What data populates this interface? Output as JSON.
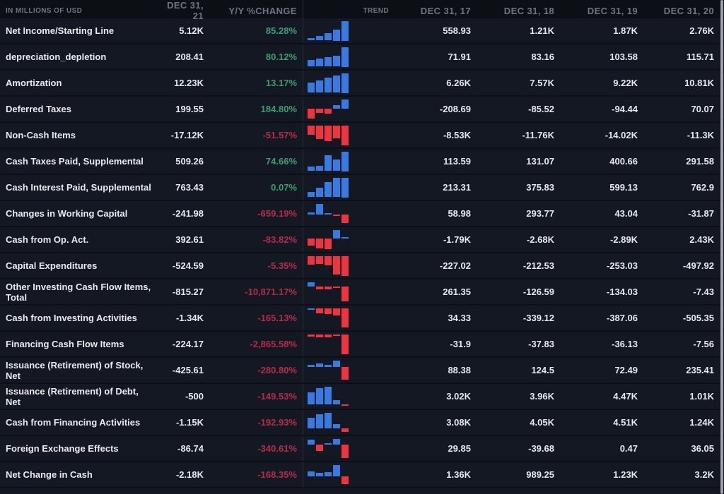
{
  "table": {
    "unit_label": "IN MILLIONS OF USD",
    "columns": {
      "current": "DEC 31, 21",
      "yoy": "Y/Y %CHANGE",
      "trend": "TREND",
      "y2017": "DEC 31, 17",
      "y2018": "DEC 31, 18",
      "y2019": "DEC 31, 19",
      "y2020": "DEC 31, 20"
    },
    "colors": {
      "positive_text": "#3c9e6e",
      "negative_text": "#b42d46",
      "bar_positive": "#377be2",
      "bar_negative": "#ef3440"
    },
    "rows": [
      {
        "label": "Net Income/Starting Line",
        "current": "5.12K",
        "yoy": "85.28%",
        "yoy_dir": "up",
        "y2017": "558.93",
        "y2018": "1.21K",
        "y2019": "1.87K",
        "y2020": "2.76K",
        "trend_values": [
          558.93,
          1210,
          1870,
          2760,
          5120
        ]
      },
      {
        "label": "depreciation_depletion",
        "current": "208.41",
        "yoy": "80.12%",
        "yoy_dir": "up",
        "y2017": "71.91",
        "y2018": "83.16",
        "y2019": "103.58",
        "y2020": "115.71",
        "trend_values": [
          71.91,
          83.16,
          103.58,
          115.71,
          208.41
        ]
      },
      {
        "label": "Amortization",
        "current": "12.23K",
        "yoy": "13.17%",
        "yoy_dir": "up",
        "y2017": "6.26K",
        "y2018": "7.57K",
        "y2019": "9.22K",
        "y2020": "10.81K",
        "trend_values": [
          6260,
          7570,
          9220,
          10810,
          12230
        ]
      },
      {
        "label": "Deferred Taxes",
        "current": "199.55",
        "yoy": "184.80%",
        "yoy_dir": "up",
        "y2017": "-208.69",
        "y2018": "-85.52",
        "y2019": "-94.44",
        "y2020": "70.07",
        "trend_values": [
          -208.69,
          -85.52,
          -94.44,
          70.07,
          199.55
        ]
      },
      {
        "label": "Non-Cash Items",
        "current": "-17.12K",
        "yoy": "-51.57%",
        "yoy_dir": "down",
        "y2017": "-8.53K",
        "y2018": "-11.76K",
        "y2019": "-14.02K",
        "y2020": "-11.3K",
        "trend_values": [
          -8530,
          -11760,
          -14020,
          -11300,
          -17120
        ]
      },
      {
        "label": "Cash Taxes Paid, Supplemental",
        "current": "509.26",
        "yoy": "74.66%",
        "yoy_dir": "up",
        "y2017": "113.59",
        "y2018": "131.07",
        "y2019": "400.66",
        "y2020": "291.58",
        "trend_values": [
          113.59,
          131.07,
          400.66,
          291.58,
          509.26
        ]
      },
      {
        "label": "Cash Interest Paid, Supplemental",
        "current": "763.43",
        "yoy": "0.07%",
        "yoy_dir": "up",
        "y2017": "213.31",
        "y2018": "375.83",
        "y2019": "599.13",
        "y2020": "762.9",
        "trend_values": [
          213.31,
          375.83,
          599.13,
          762.9,
          763.43
        ]
      },
      {
        "label": "Changes in Working Capital",
        "current": "-241.98",
        "yoy": "-659.19%",
        "yoy_dir": "down",
        "y2017": "58.98",
        "y2018": "293.77",
        "y2019": "43.04",
        "y2020": "-31.87",
        "trend_values": [
          58.98,
          293.77,
          43.04,
          -31.87,
          -241.98
        ]
      },
      {
        "label": "Cash from Op. Act.",
        "current": "392.61",
        "yoy": "-83.82%",
        "yoy_dir": "down",
        "y2017": "-1.79K",
        "y2018": "-2.68K",
        "y2019": "-2.89K",
        "y2020": "2.43K",
        "trend_values": [
          -1790,
          -2680,
          -2890,
          2430,
          392.61
        ]
      },
      {
        "label": "Capital Expenditures",
        "current": "-524.59",
        "yoy": "-5.35%",
        "yoy_dir": "down",
        "y2017": "-227.02",
        "y2018": "-212.53",
        "y2019": "-253.03",
        "y2020": "-497.92",
        "trend_values": [
          -227.02,
          -212.53,
          -253.03,
          -497.92,
          -524.59
        ]
      },
      {
        "label": "Other Investing Cash Flow Items, Total",
        "current": "-815.27",
        "yoy": "-10,871.17%",
        "yoy_dir": "down",
        "y2017": "261.35",
        "y2018": "-126.59",
        "y2019": "-134.03",
        "y2020": "-7.43",
        "trend_values": [
          261.35,
          -126.59,
          -134.03,
          -7.43,
          -815.27
        ]
      },
      {
        "label": "Cash from Investing Activities",
        "current": "-1.34K",
        "yoy": "-165.13%",
        "yoy_dir": "down",
        "y2017": "34.33",
        "y2018": "-339.12",
        "y2019": "-387.06",
        "y2020": "-505.35",
        "trend_values": [
          34.33,
          -339.12,
          -387.06,
          -505.35,
          -1340
        ]
      },
      {
        "label": "Financing Cash Flow Items",
        "current": "-224.17",
        "yoy": "-2,865.58%",
        "yoy_dir": "down",
        "y2017": "-31.9",
        "y2018": "-37.83",
        "y2019": "-36.13",
        "y2020": "-7.56",
        "trend_values": [
          -31.9,
          -37.83,
          -36.13,
          -7.56,
          -224.17
        ]
      },
      {
        "label": "Issuance (Retirement) of Stock, Net",
        "current": "-425.61",
        "yoy": "-280.80%",
        "yoy_dir": "down",
        "y2017": "88.38",
        "y2018": "124.5",
        "y2019": "72.49",
        "y2020": "235.41",
        "trend_values": [
          88.38,
          124.5,
          72.49,
          235.41,
          -425.61
        ]
      },
      {
        "label": "Issuance (Retirement) of Debt, Net",
        "current": "-500",
        "yoy": "-149.53%",
        "yoy_dir": "down",
        "y2017": "3.02K",
        "y2018": "3.96K",
        "y2019": "4.47K",
        "y2020": "1.01K",
        "trend_values": [
          3020,
          3960,
          4470,
          1010,
          -500
        ]
      },
      {
        "label": "Cash from Financing Activities",
        "current": "-1.15K",
        "yoy": "-192.93%",
        "yoy_dir": "down",
        "y2017": "3.08K",
        "y2018": "4.05K",
        "y2019": "4.51K",
        "y2020": "1.24K",
        "trend_values": [
          3080,
          4050,
          4510,
          1240,
          -1150
        ]
      },
      {
        "label": "Foreign Exchange Effects",
        "current": "-86.74",
        "yoy": "-340.61%",
        "yoy_dir": "down",
        "y2017": "29.85",
        "y2018": "-39.68",
        "y2019": "0.47",
        "y2020": "36.05",
        "trend_values": [
          29.85,
          -39.68,
          0.47,
          36.05,
          -86.74
        ]
      },
      {
        "label": "Net Change in Cash",
        "current": "-2.18K",
        "yoy": "-168.35%",
        "yoy_dir": "down",
        "y2017": "1.36K",
        "y2018": "989.25",
        "y2019": "1.23K",
        "y2020": "3.2K",
        "trend_values": [
          1360,
          989.25,
          1230,
          3200,
          -2180
        ]
      }
    ]
  }
}
